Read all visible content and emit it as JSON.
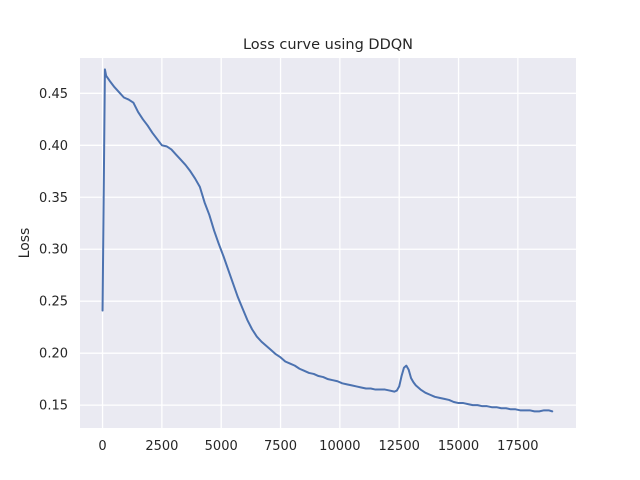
{
  "chart_data": {
    "type": "line",
    "title": "Loss curve using DDQN",
    "xlabel": "",
    "ylabel": "Loss",
    "xlim": [
      -950,
      19950
    ],
    "ylim": [
      0.128,
      0.484
    ],
    "x_ticks": [
      0,
      2500,
      5000,
      7500,
      10000,
      12500,
      15000,
      17500
    ],
    "x_tick_labels": [
      "0",
      "2500",
      "5000",
      "7500",
      "10000",
      "12500",
      "15000",
      "17500"
    ],
    "y_ticks": [
      0.15,
      0.2,
      0.25,
      0.3,
      0.35,
      0.4,
      0.45
    ],
    "y_tick_labels": [
      "0.15",
      "0.20",
      "0.25",
      "0.30",
      "0.35",
      "0.40",
      "0.45"
    ],
    "grid": true,
    "style": {
      "background": "#eaeaf2",
      "grid_color": "#ffffff",
      "line_color": "#4c72b0"
    },
    "series": [
      {
        "x": [
          0,
          100,
          150,
          300,
          500,
          700,
          900,
          1100,
          1300,
          1500,
          1700,
          1900,
          2100,
          2300,
          2500,
          2700,
          2900,
          3100,
          3300,
          3500,
          3700,
          3900,
          4100,
          4300,
          4500,
          4700,
          4900,
          5100,
          5300,
          5500,
          5700,
          5900,
          6100,
          6300,
          6500,
          6700,
          6900,
          7100,
          7300,
          7500,
          7700,
          7900,
          8100,
          8300,
          8500,
          8700,
          8900,
          9100,
          9300,
          9500,
          9700,
          9900,
          10100,
          10300,
          10500,
          10700,
          10900,
          11100,
          11300,
          11500,
          11700,
          11900,
          12100,
          12300,
          12400,
          12500,
          12600,
          12700,
          12800,
          12900,
          13000,
          13100,
          13200,
          13400,
          13600,
          13800,
          14000,
          14200,
          14400,
          14600,
          14800,
          15000,
          15200,
          15400,
          15600,
          15800,
          16000,
          16200,
          16400,
          16600,
          16800,
          17000,
          17200,
          17400,
          17600,
          17800,
          18000,
          18200,
          18400,
          18600,
          18800,
          18950
        ],
        "values": [
          0.241,
          0.473,
          0.467,
          0.462,
          0.456,
          0.451,
          0.446,
          0.444,
          0.441,
          0.432,
          0.425,
          0.419,
          0.412,
          0.406,
          0.4,
          0.399,
          0.396,
          0.391,
          0.386,
          0.381,
          0.375,
          0.368,
          0.36,
          0.345,
          0.333,
          0.318,
          0.305,
          0.293,
          0.28,
          0.267,
          0.254,
          0.243,
          0.232,
          0.223,
          0.216,
          0.211,
          0.207,
          0.203,
          0.199,
          0.196,
          0.192,
          0.19,
          0.188,
          0.185,
          0.183,
          0.181,
          0.18,
          0.178,
          0.177,
          0.175,
          0.174,
          0.173,
          0.171,
          0.17,
          0.169,
          0.168,
          0.167,
          0.166,
          0.166,
          0.165,
          0.165,
          0.165,
          0.164,
          0.163,
          0.164,
          0.168,
          0.178,
          0.186,
          0.188,
          0.184,
          0.176,
          0.172,
          0.169,
          0.165,
          0.162,
          0.16,
          0.158,
          0.157,
          0.156,
          0.155,
          0.153,
          0.152,
          0.152,
          0.151,
          0.15,
          0.15,
          0.149,
          0.149,
          0.148,
          0.148,
          0.147,
          0.147,
          0.146,
          0.146,
          0.145,
          0.145,
          0.145,
          0.144,
          0.144,
          0.145,
          0.145,
          0.144
        ]
      }
    ]
  }
}
